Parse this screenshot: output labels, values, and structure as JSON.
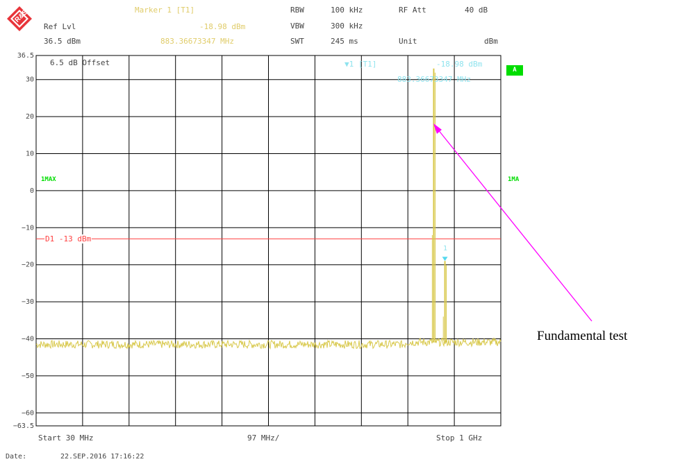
{
  "header": {
    "marker_title": "Marker 1 [T1]",
    "marker_level": "-18.98 dBm",
    "marker_freq": "883.36673347 MHz",
    "ref_lvl_label": "Ref Lvl",
    "ref_lvl_value": "36.5 dBm",
    "rbw_label": "RBW",
    "rbw_value": "100 kHz",
    "vbw_label": "VBW",
    "vbw_value": "300 kHz",
    "swt_label": "SWT",
    "swt_value": "245 ms",
    "rfatt_label": "RF Att",
    "rfatt_value": "40 dB",
    "unit_label": "Unit",
    "unit_value": "dBm"
  },
  "plot_labels": {
    "offset": "6.5 dB Offset",
    "marker_tag": "1 [T1]",
    "marker_level": "-18.98 dBm",
    "marker_freq": "883.36673347 MHz",
    "marker_num": "1",
    "trace_badge": "A",
    "left_trace": "1MAX",
    "right_trace": "1MA",
    "display_line": "D1 -13 dBm"
  },
  "footer": {
    "start": "Start 30 MHz",
    "span": "97 MHz/",
    "stop": "Stop 1 GHz",
    "date_label": "Date:",
    "date_value": "22.SEP.2016  17:16:22"
  },
  "annotation": "Fundamental test",
  "colors": {
    "trace": "#d8c84a",
    "display_line": "#ff4040",
    "marker": "#55d8ee",
    "arrow": "#ff00ff",
    "grid": "#000000",
    "badge": "#00dd00"
  },
  "chart_data": {
    "type": "line",
    "xlim_mhz": [
      30,
      1000
    ],
    "ylim_dbm": [
      -63.5,
      36.5
    ],
    "y_ticks": [
      36.5,
      30,
      20,
      10,
      0,
      -10,
      -20,
      -30,
      -40,
      -50,
      -60,
      -63.5
    ],
    "display_line_dbm": -13,
    "noise_floor_dbm": -41.5,
    "peaks": [
      {
        "freq_mhz": 860,
        "level_dbm": 33
      },
      {
        "freq_mhz": 883.37,
        "level_dbm": -18.98
      }
    ],
    "grid": true
  }
}
